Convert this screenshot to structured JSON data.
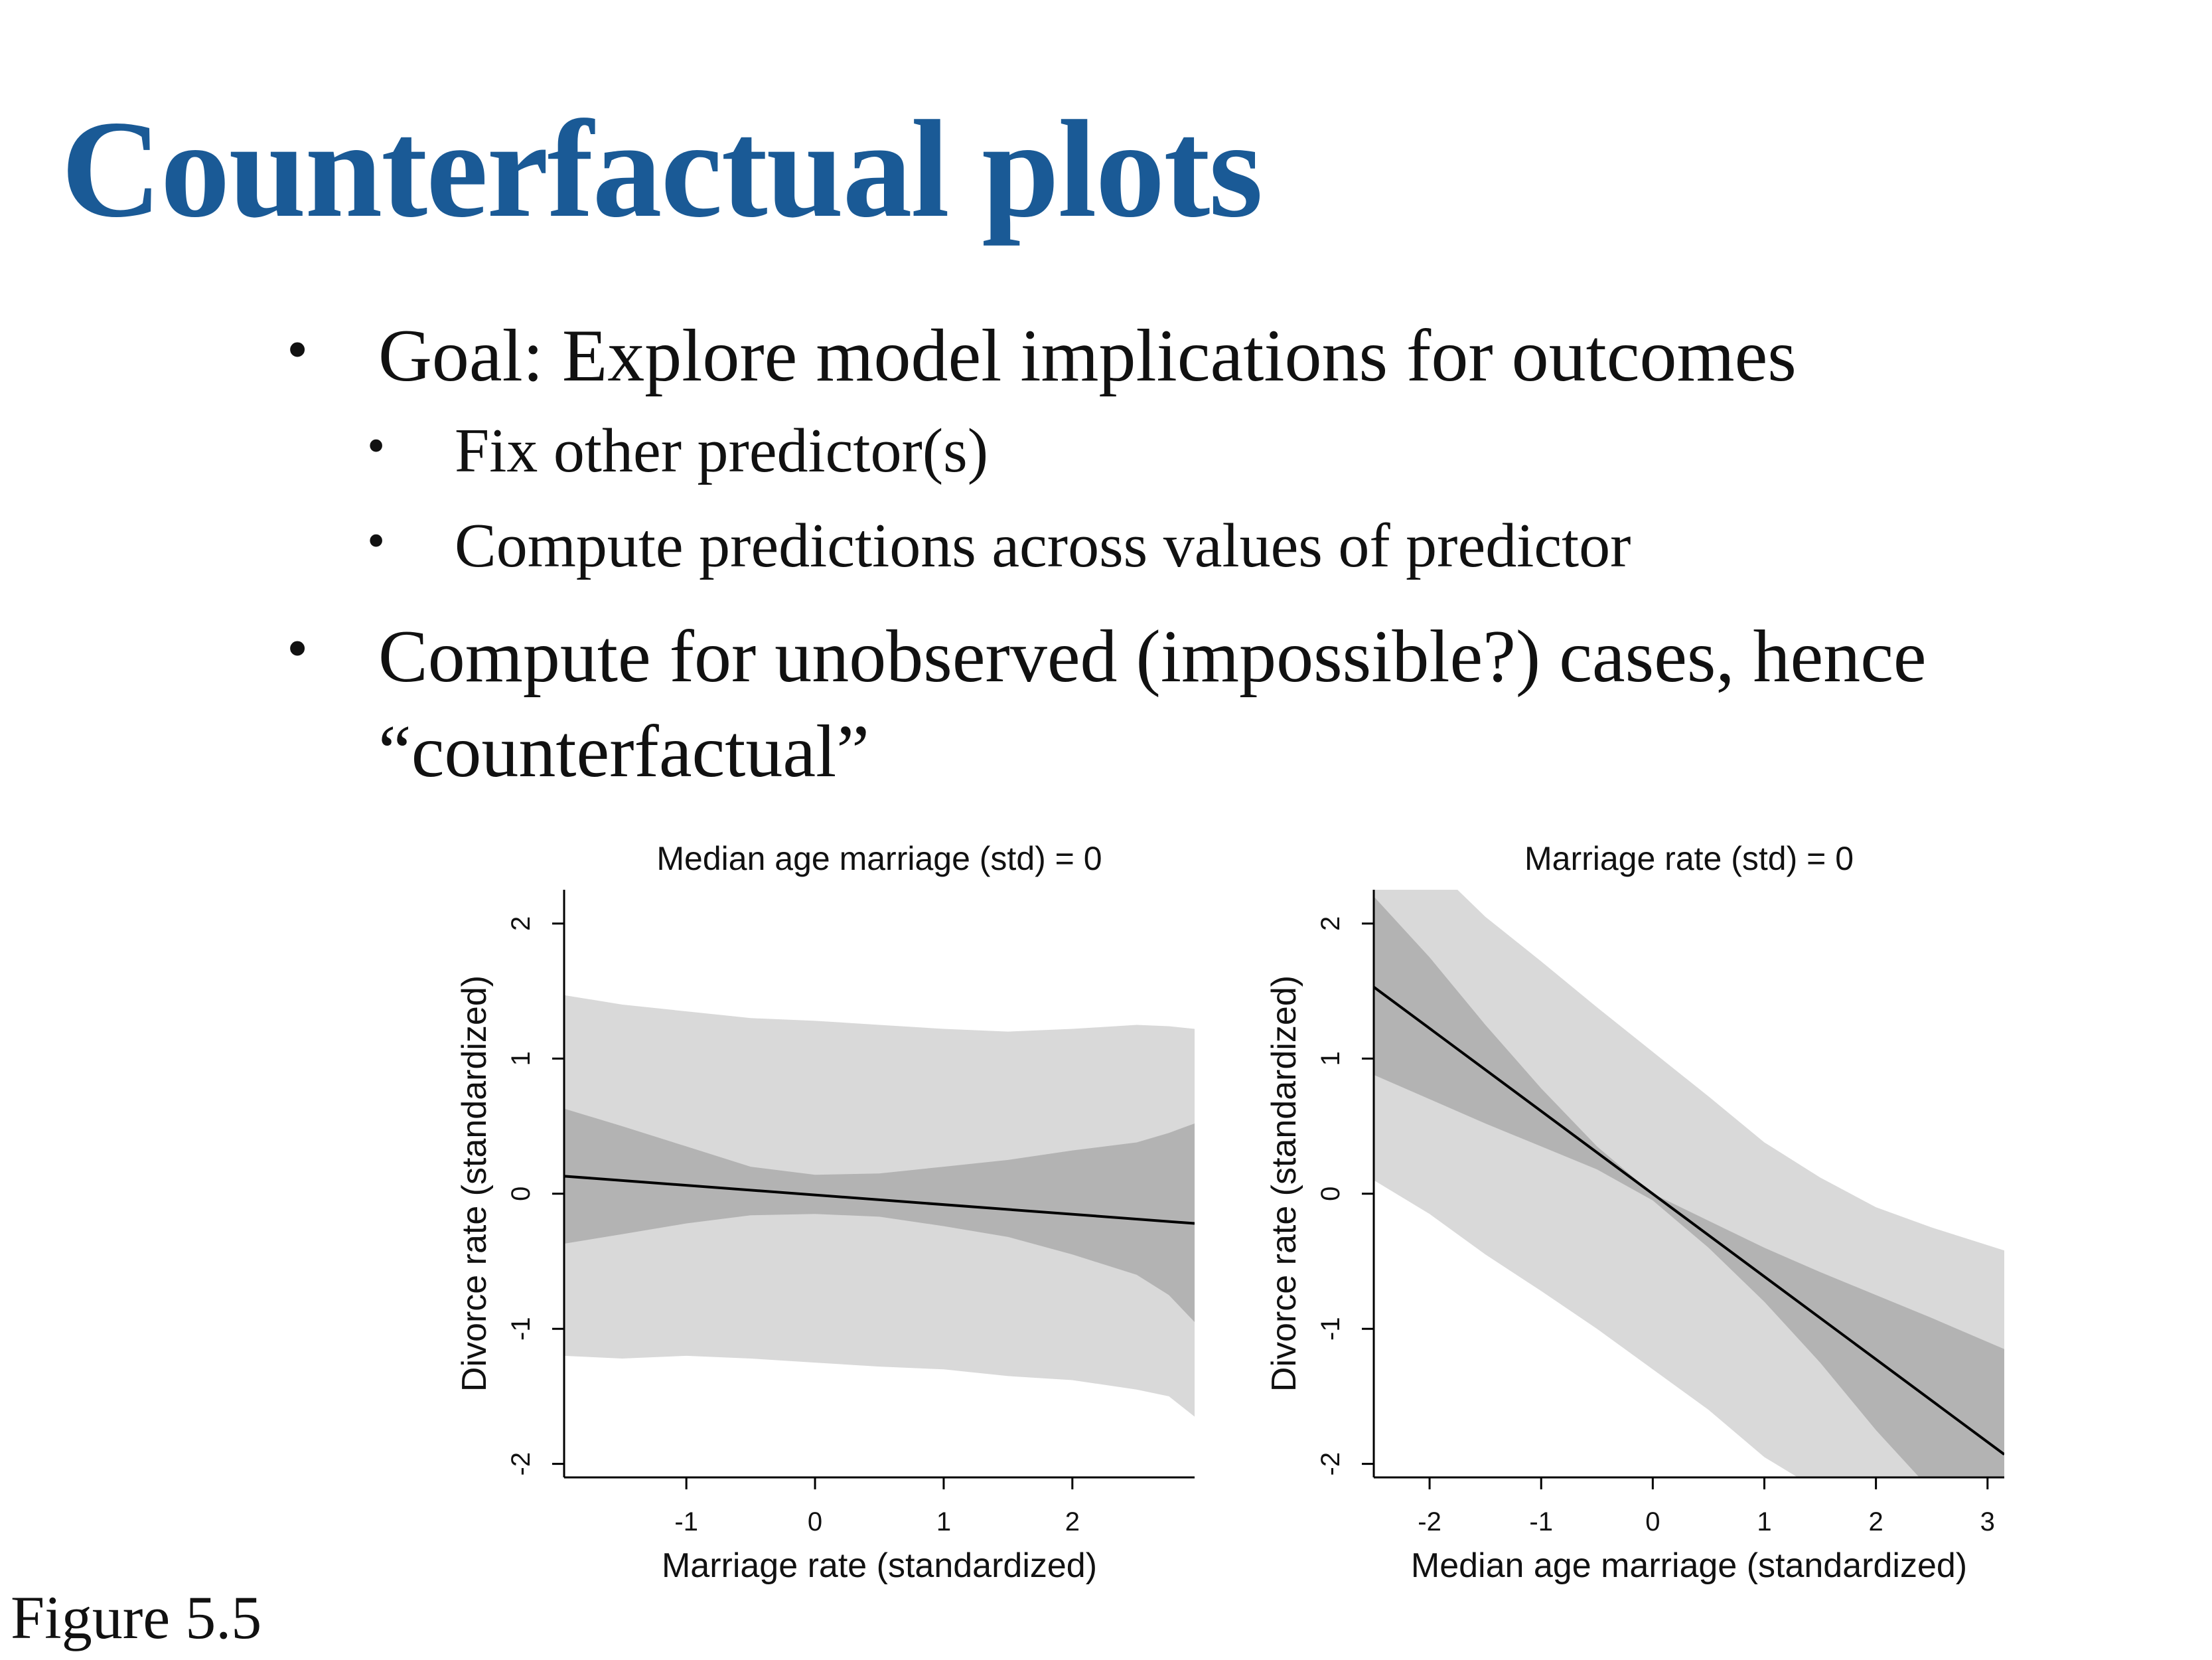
{
  "slide": {
    "title": "Counterfactual plots",
    "bullets": [
      "Goal: Explore model implications for outcomes",
      "Fix other predictor(s)",
      "Compute predictions across values of predictor",
      "Compute for unobserved (impossible?) cases, hence “counterfactual”"
    ],
    "bullet_glyph": "•",
    "caption": "Figure 5.5"
  },
  "chart_data": [
    {
      "type": "line",
      "title": "Median age marriage (std) = 0",
      "xlabel": "Marriage rate (standardized)",
      "ylabel": "Divorce rate (standardized)",
      "xlim": [
        -1.95,
        2.95
      ],
      "ylim": [
        -2.1,
        2.25
      ],
      "xticks": [
        -1,
        0,
        1,
        2
      ],
      "yticks": [
        -2,
        -1,
        0,
        1,
        2
      ],
      "grid": false,
      "colors": {
        "line": "#000000",
        "inner_band": "#b3b3b3",
        "outer_band": "#d9d9d9"
      },
      "series": [
        {
          "x": [
            -1.95,
            2.95
          ],
          "mean": [
            0.13,
            -0.22
          ],
          "inner_lower": [
            -0.37,
            -0.3,
            -0.22,
            -0.16,
            -0.15,
            -0.17,
            -0.24,
            -0.32,
            -0.45,
            -0.6,
            -0.75,
            -0.95
          ],
          "inner_upper": [
            0.63,
            0.5,
            0.35,
            0.2,
            0.14,
            0.15,
            0.2,
            0.25,
            0.32,
            0.38,
            0.45,
            0.52
          ],
          "outer_lower": [
            -1.2,
            -1.22,
            -1.2,
            -1.22,
            -1.25,
            -1.28,
            -1.3,
            -1.35,
            -1.38,
            -1.45,
            -1.5,
            -1.65
          ],
          "outer_upper": [
            1.47,
            1.4,
            1.35,
            1.3,
            1.28,
            1.25,
            1.22,
            1.2,
            1.22,
            1.25,
            1.24,
            1.22
          ],
          "band_x": [
            -1.95,
            -1.5,
            -1.0,
            -0.5,
            0.0,
            0.5,
            1.0,
            1.5,
            2.0,
            2.5,
            2.75,
            2.95
          ]
        }
      ]
    },
    {
      "type": "line",
      "title": "Marriage rate (std) = 0",
      "xlabel": "Median age marriage (standardized)",
      "ylabel": "Divorce rate (standardized)",
      "xlim": [
        -2.5,
        3.15
      ],
      "ylim": [
        -2.1,
        2.25
      ],
      "xticks": [
        -2,
        -1,
        0,
        1,
        2,
        3
      ],
      "yticks": [
        -2,
        -1,
        0,
        1,
        2
      ],
      "grid": false,
      "colors": {
        "line": "#000000",
        "inner_band": "#b3b3b3",
        "outer_band": "#d9d9d9"
      },
      "series": [
        {
          "x": [
            -2.5,
            3.15
          ],
          "mean": [
            1.53,
            -1.93
          ],
          "band_x": [
            -2.5,
            -2.0,
            -1.5,
            -1.0,
            -0.5,
            0.0,
            0.5,
            1.0,
            1.5,
            2.0,
            2.5,
            3.15
          ],
          "inner_lower": [
            0.88,
            0.7,
            0.52,
            0.35,
            0.18,
            -0.05,
            -0.4,
            -0.8,
            -1.25,
            -1.75,
            -2.2,
            -2.6
          ],
          "inner_upper": [
            2.2,
            1.75,
            1.25,
            0.78,
            0.35,
            0.0,
            -0.2,
            -0.4,
            -0.58,
            -0.75,
            -0.92,
            -1.15
          ],
          "outer_lower": [
            0.1,
            -0.15,
            -0.45,
            -0.72,
            -1.0,
            -1.3,
            -1.6,
            -1.95,
            -2.2,
            -2.5,
            -2.8,
            -3.1
          ],
          "outer_upper": [
            2.8,
            2.45,
            2.05,
            1.72,
            1.38,
            1.05,
            0.72,
            0.38,
            0.12,
            -0.1,
            -0.25,
            -0.42
          ]
        }
      ]
    }
  ]
}
